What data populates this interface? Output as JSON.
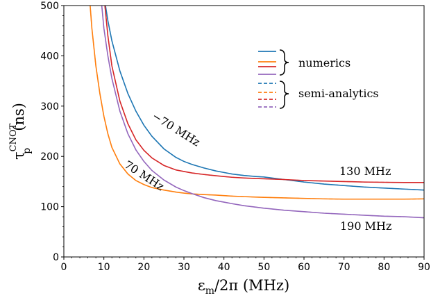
{
  "chart_data": {
    "type": "line",
    "xlabel": "εm/2π (MHz)",
    "ylabel": "τpCNOT (ns)",
    "xlim": [
      0,
      90
    ],
    "ylim": [
      0,
      500
    ],
    "xticks": [
      0,
      10,
      20,
      30,
      40,
      50,
      60,
      70,
      80,
      90
    ],
    "yticks": [
      0,
      100,
      200,
      300,
      400,
      500
    ],
    "grid": false,
    "legend_position": "top-right",
    "legend_groups": [
      "numerics",
      "semi-analytics"
    ],
    "annotations": [
      "−70 MHz",
      "70 MHz",
      "130 MHz",
      "190 MHz"
    ],
    "x": [
      6,
      7,
      8,
      9,
      10,
      11,
      12,
      14,
      16,
      18,
      20,
      22,
      25,
      28,
      30,
      32,
      35,
      38,
      40,
      42,
      45,
      48,
      50,
      55,
      60,
      65,
      70,
      75,
      80,
      85,
      90
    ],
    "series": [
      {
        "label": "−70 MHz",
        "color": "#1f77b4",
        "values": [
          null,
          null,
          null,
          null,
          520,
          470,
          430,
          370,
          325,
          290,
          262,
          240,
          215,
          198,
          190,
          184,
          177,
          171,
          168,
          165,
          162,
          160,
          159,
          154,
          149,
          145,
          142,
          139,
          137,
          135,
          133
        ]
      },
      {
        "label": "70 MHz",
        "color": "#ff7f0e",
        "values": [
          560,
          455,
          380,
          325,
          280,
          245,
          218,
          185,
          165,
          152,
          144,
          138,
          133,
          129,
          127,
          125.5,
          124,
          123,
          122,
          121,
          120,
          119,
          118.5,
          117.5,
          116.5,
          115.5,
          115,
          115,
          115,
          115,
          115.5
        ]
      },
      {
        "label": "130 MHz",
        "color": "#d62728",
        "values": [
          null,
          null,
          null,
          null,
          520,
          440,
          380,
          310,
          265,
          233,
          212,
          197,
          182,
          173,
          170,
          167,
          164,
          161.5,
          160,
          158.5,
          157,
          156,
          155.5,
          154,
          152,
          151,
          150,
          149,
          148.5,
          148,
          148
        ]
      },
      {
        "label": "190 MHz",
        "color": "#9467bd",
        "values": [
          null,
          null,
          null,
          540,
          455,
          400,
          355,
          290,
          245,
          213,
          190,
          172,
          153,
          139,
          132,
          126,
          118,
          112,
          109,
          106,
          102,
          99,
          97,
          93,
          90,
          87,
          85,
          83,
          81,
          80,
          78
        ]
      }
    ]
  }
}
